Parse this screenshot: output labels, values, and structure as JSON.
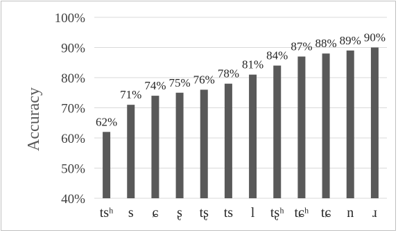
{
  "chart_data": {
    "type": "bar",
    "title": "",
    "xlabel": "",
    "ylabel": "Accuracy",
    "ylim": [
      40,
      100
    ],
    "y_ticks": [
      "40%",
      "50%",
      "60%",
      "70%",
      "80%",
      "90%",
      "100%"
    ],
    "grid": true,
    "bar_color": "#595959",
    "grid_color": "#d9d9d9",
    "categories": [
      "tsʰ",
      "s",
      "ɕ",
      "ʂ",
      "tʂ",
      "ts",
      "l",
      "tʂʰ",
      "tɕʰ",
      "tɕ",
      "n",
      "ɹ"
    ],
    "values": [
      62,
      71,
      74,
      75,
      76,
      78,
      81,
      84,
      87,
      88,
      89,
      90
    ],
    "data_labels": [
      "62%",
      "71%",
      "74%",
      "75%",
      "76%",
      "78%",
      "81%",
      "84%",
      "87%",
      "88%",
      "89%",
      "90%"
    ]
  }
}
